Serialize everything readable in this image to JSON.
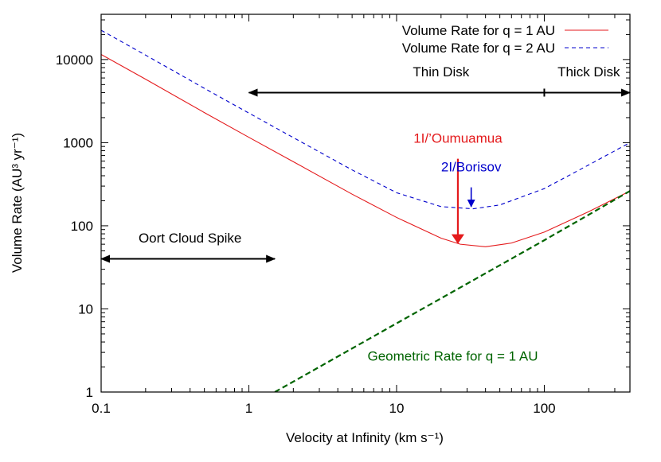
{
  "chart_data": {
    "type": "line",
    "title": "",
    "xlabel": "Velocity at Infinity (km s⁻¹)",
    "ylabel": "Volume Rate (AU³ yr⁻¹)",
    "xscale": "log",
    "yscale": "log",
    "xlim": [
      0.1,
      380
    ],
    "ylim": [
      1,
      35000
    ],
    "grid": false,
    "legend_position": "top-right",
    "x_ticks": [
      {
        "value": 0.1,
        "label": "0.1"
      },
      {
        "value": 1,
        "label": "1"
      },
      {
        "value": 10,
        "label": "10"
      },
      {
        "value": 100,
        "label": "100"
      }
    ],
    "y_ticks": [
      {
        "value": 1,
        "label": "1"
      },
      {
        "value": 10,
        "label": "10"
      },
      {
        "value": 100,
        "label": "100"
      },
      {
        "value": 1000,
        "label": "1000"
      },
      {
        "value": 10000,
        "label": "10000"
      }
    ],
    "series": [
      {
        "name": "Volume Rate for q = 1 AU",
        "color": "#e41a1c",
        "dash": "solid",
        "x": [
          0.1,
          0.2,
          0.5,
          1,
          2,
          5,
          10,
          20,
          27,
          40,
          60,
          100,
          200,
          380
        ],
        "y": [
          11500,
          5800,
          2300,
          1160,
          590,
          240,
          126,
          71,
          60,
          56,
          62,
          84,
          148,
          262
        ]
      },
      {
        "name": "Volume Rate for q = 2 AU",
        "color": "#0000cc",
        "dash": "dashed",
        "x": [
          0.1,
          0.2,
          0.5,
          1,
          2,
          5,
          10,
          20,
          33,
          50,
          100,
          200,
          380
        ],
        "y": [
          22500,
          11300,
          4500,
          2270,
          1150,
          470,
          250,
          170,
          160,
          178,
          280,
          540,
          1000
        ]
      },
      {
        "name": "Geometric Rate for q = 1 AU",
        "color": "#006400",
        "dash": "dashed",
        "x": [
          1.5,
          10,
          100,
          380
        ],
        "y": [
          1,
          6.7,
          67,
          262
        ]
      }
    ],
    "annotations": [
      {
        "id": "thin-disk",
        "text": "Thin Disk",
        "color": "#000000",
        "type": "range",
        "x_range": [
          1,
          100
        ],
        "y": 4000,
        "label_x": 20,
        "label_y": 6300
      },
      {
        "id": "thick-disk",
        "text": "Thick Disk",
        "color": "#000000",
        "type": "range",
        "x_range": [
          100,
          380
        ],
        "y": 4000,
        "label_x": 200,
        "label_y": 6300
      },
      {
        "id": "oort-cloud",
        "text": "Oort Cloud Spike",
        "color": "#000000",
        "type": "range",
        "x_range": [
          0.1,
          1.5
        ],
        "y": 40,
        "label_x": 0.4,
        "label_y": 63
      },
      {
        "id": "oumuamua",
        "text": "1I/’Oumuamua",
        "color": "#e41a1c",
        "type": "arrow",
        "x": 26,
        "y_from": 640,
        "y_to": 62,
        "label_x": 26,
        "label_y": 1000
      },
      {
        "id": "borisov",
        "text": "2I/Borisov",
        "color": "#0000cc",
        "type": "arrow",
        "x": 32,
        "y_from": 290,
        "y_to": 170,
        "label_x": 32,
        "label_y": 450
      }
    ]
  }
}
